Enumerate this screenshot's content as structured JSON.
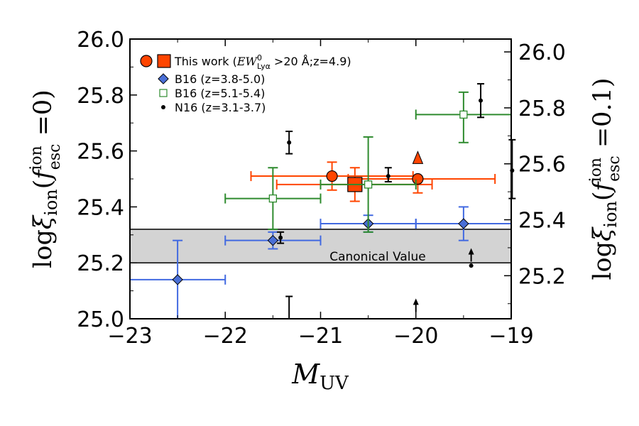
{
  "chart_data": {
    "type": "scatter",
    "xlabel": "M_UV",
    "ylabel": "logξ_ion(f_esc^ion = 0)",
    "ylabel_right": "logξ_ion(f_esc^ion = 0.1)",
    "xlim": [
      -23,
      -19
    ],
    "ylim": [
      25.0,
      26.0
    ],
    "ylim_right": [
      25.046,
      26.046
    ],
    "xticks": [
      "−23",
      "−22",
      "−21",
      "−20",
      "−19"
    ],
    "xtick_values": [
      -23,
      -22,
      -21,
      -20,
      -19
    ],
    "yticks": [
      "25.0",
      "25.2",
      "25.4",
      "25.6",
      "25.8",
      "26.0"
    ],
    "ytick_values": [
      25.0,
      25.2,
      25.4,
      25.6,
      25.8,
      26.0
    ],
    "yticks_right": [
      "25.2",
      "25.4",
      "25.6",
      "25.8",
      "26.0"
    ],
    "ytick_values_right": [
      25.2,
      25.4,
      25.6,
      25.8,
      26.0
    ],
    "band": {
      "y_low": 25.2,
      "y_high": 25.32,
      "label": "Canonical Value",
      "color": "#d3d3d3"
    },
    "legend": {
      "location": "top-left",
      "entries": [
        {
          "label": "This work (",
          "math": "EW",
          "sup": "0",
          "sub": "Lyα",
          "tail": " >20 Å;z=4.9)"
        },
        {
          "label": "B16 (z=3.8-5.0)"
        },
        {
          "label": "B16 (z=5.1-5.4)"
        },
        {
          "label": "N16 (z=3.1-3.7)"
        }
      ]
    },
    "series": [
      {
        "name": "This work",
        "color": "#ff4500",
        "points": [
          {
            "x": -20.88,
            "y": 25.51,
            "xerr": [
              0.85,
              0.85
            ],
            "yerr": [
              0.05,
              0.05
            ],
            "marker": "circle"
          },
          {
            "x": -19.98,
            "y": 25.5,
            "xerr": [
              0.73,
              0.81
            ],
            "yerr": [
              0.05,
              0.0
            ],
            "marker": "circle"
          },
          {
            "x": -20.64,
            "y": 25.48,
            "xerr": [
              0.82,
              0.81
            ],
            "yerr": [
              0.06,
              0.06
            ],
            "marker": "square"
          }
        ],
        "lower_limits": [
          {
            "x": -19.98,
            "y": 25.57
          }
        ]
      },
      {
        "name": "B16 (z=3.8-5.0)",
        "color": "#4169e1",
        "fill": "#4a6fd6",
        "marker": "diamond",
        "points": [
          {
            "x": -22.5,
            "y": 25.14,
            "xerr": [
              0.5,
              0.5
            ],
            "yerr": [
              0.14,
              0.14
            ]
          },
          {
            "x": -21.5,
            "y": 25.28,
            "xerr": [
              0.5,
              0.5
            ],
            "yerr": [
              0.03,
              0.03
            ]
          },
          {
            "x": -20.5,
            "y": 25.34,
            "xerr": [
              0.5,
              0.5
            ],
            "yerr": [
              0.03,
              0.03
            ]
          },
          {
            "x": -19.5,
            "y": 25.34,
            "xerr": [
              0.5,
              0.5
            ],
            "yerr": [
              0.06,
              0.06
            ]
          }
        ]
      },
      {
        "name": "B16 (z=5.1-5.4)",
        "color": "#2e8b2e",
        "marker": "open-square",
        "points": [
          {
            "x": -21.5,
            "y": 25.43,
            "xerr": [
              0.5,
              0.5
            ],
            "yerr": [
              0.11,
              0.11
            ]
          },
          {
            "x": -20.5,
            "y": 25.48,
            "xerr": [
              0.5,
              0.5
            ],
            "yerr": [
              0.17,
              0.17
            ]
          },
          {
            "x": -19.5,
            "y": 25.73,
            "xerr": [
              0.5,
              0.5
            ],
            "yerr": [
              0.1,
              0.08
            ]
          }
        ]
      },
      {
        "name": "N16 (z=3.1-3.7)",
        "color": "#000000",
        "marker": "dot",
        "points": [
          {
            "x": -21.33,
            "y": 25.63,
            "yerr": [
              0.04,
              0.04
            ]
          },
          {
            "x": -21.42,
            "y": 25.29,
            "yerr": [
              0.02,
              0.02
            ]
          },
          {
            "x": -20.29,
            "y": 25.51,
            "yerr": [
              0.02,
              0.03
            ]
          },
          {
            "x": -19.32,
            "y": 25.78,
            "yerr": [
              0.06,
              0.06
            ]
          },
          {
            "x": -18.99,
            "y": 25.53,
            "yerr": [
              0.1,
              0.11
            ]
          },
          {
            "x": -19.42,
            "y": 25.19,
            "yerr": [
              0,
              0
            ]
          }
        ],
        "lower_limits": [
          {
            "x": -19.42,
            "y": 25.24
          },
          {
            "x": -20.0,
            "y": 25.06
          }
        ],
        "bare_errorbars": [
          {
            "x": -21.33,
            "y_low": 25.0,
            "y_high": 25.08
          }
        ]
      }
    ]
  }
}
